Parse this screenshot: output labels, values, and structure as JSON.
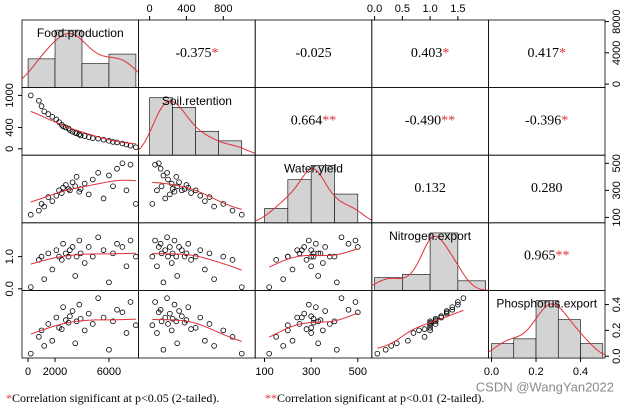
{
  "chart_data": {
    "type": "pairs",
    "variables": [
      {
        "name": "Food.production",
        "lim": [
          -450,
          8200
        ],
        "xticks": [
          0,
          2000,
          6000
        ],
        "yticks": [
          0,
          4000,
          8000
        ],
        "bins": [
          0,
          2000,
          4000,
          6000,
          8000
        ],
        "counts": [
          6,
          12,
          5,
          7
        ],
        "observations": [
          200,
          800,
          1000,
          1200,
          1500,
          1800,
          2100,
          2300,
          2500,
          2600,
          2800,
          3000,
          3100,
          3300,
          3500,
          3600,
          3800,
          3900,
          4200,
          4500,
          4800,
          5200,
          5600,
          6000,
          6300,
          6600,
          7000,
          7300,
          7600,
          8000
        ]
      },
      {
        "name": "Soil.retention",
        "lim": [
          -119,
          1146
        ],
        "xticks": [
          0,
          400,
          800
        ],
        "yticks": [
          0,
          400,
          1000
        ],
        "bins": [
          0,
          250,
          500,
          750,
          1000
        ],
        "counts": [
          12,
          10,
          5,
          3
        ],
        "observations": [
          1000,
          900,
          800,
          700,
          650,
          600,
          550,
          500,
          450,
          420,
          400,
          380,
          350,
          320,
          300,
          290,
          270,
          250,
          240,
          220,
          200,
          190,
          170,
          150,
          130,
          120,
          100,
          80,
          60,
          30
        ]
      },
      {
        "name": "Water.yield",
        "lim": [
          60,
          560
        ],
        "xticks": [
          100,
          300,
          500
        ],
        "yticks": [
          100,
          300,
          500
        ],
        "bins": [
          100,
          200,
          300,
          400,
          500
        ],
        "counts": [
          3,
          9,
          12,
          6
        ],
        "observations": [
          120,
          150,
          200,
          180,
          250,
          220,
          260,
          300,
          280,
          320,
          340,
          310,
          300,
          360,
          330,
          400,
          290,
          310,
          350,
          270,
          380,
          430,
          240,
          410,
          330,
          460,
          500,
          300,
          490,
          200
        ]
      },
      {
        "name": "Nitrogen.export",
        "lim": [
          -0.05,
          2.05
        ],
        "xticks": [
          {
            "value": 0,
            "label": "0.0"
          },
          {
            "value": 0.5,
            "label": "0.5"
          },
          {
            "value": 1,
            "label": "1.0"
          },
          {
            "value": 1.5,
            "label": "1.5"
          }
        ],
        "yticks": [
          {
            "value": 0,
            "label": "0.0"
          },
          {
            "value": 1,
            "label": "1.0"
          }
        ],
        "bins": [
          0,
          0.5,
          1,
          1.5,
          2
        ],
        "counts": [
          4,
          5,
          18,
          3
        ],
        "observations": [
          0.05,
          0.9,
          1.0,
          0.3,
          1.1,
          0.6,
          1.2,
          1.0,
          0.9,
          1.4,
          1.1,
          1.0,
          1.2,
          1.3,
          0.4,
          1.0,
          1.5,
          1.1,
          0.8,
          1.3,
          1.0,
          1.6,
          1.2,
          0.2,
          1.1,
          1.4,
          1.3,
          0.7,
          1.5,
          1.0
        ]
      },
      {
        "name": "Phosphorus.export",
        "lim": [
          -0.014,
          0.51
        ],
        "xticks": [
          {
            "value": 0,
            "label": "0.0"
          },
          0.2,
          0.4
        ],
        "yticks": [
          {
            "value": 0,
            "label": "0.0"
          },
          0.2,
          0.4
        ],
        "bins": [
          0,
          0.1,
          0.2,
          0.3,
          0.4,
          0.5
        ],
        "counts": [
          3,
          4,
          12,
          8,
          3
        ],
        "observations": [
          0.02,
          0.15,
          0.2,
          0.08,
          0.25,
          0.12,
          0.3,
          0.22,
          0.21,
          0.38,
          0.28,
          0.26,
          0.31,
          0.35,
          0.1,
          0.27,
          0.4,
          0.29,
          0.2,
          0.33,
          0.25,
          0.45,
          0.3,
          0.05,
          0.27,
          0.36,
          0.34,
          0.18,
          0.42,
          0.24
        ]
      }
    ],
    "correlations": [
      {
        "value": -0.375,
        "label": "-0.375",
        "stars": "*"
      },
      {
        "value": -0.025,
        "label": "-0.025"
      },
      {
        "value": 0.403,
        "label": "0.403",
        "stars": "*"
      },
      {
        "value": 0.417,
        "label": "0.417",
        "stars": "*"
      },
      {
        "value": 0.664,
        "label": "0.664",
        "stars": "**"
      },
      {
        "value": -0.49,
        "label": "-0.490",
        "stars": "**"
      },
      {
        "value": -0.396,
        "label": "-0.396",
        "stars": "*"
      },
      {
        "value": 0.132,
        "label": "0.132"
      },
      {
        "value": 0.28,
        "label": "0.280"
      },
      {
        "value": 0.965,
        "label": "0.965",
        "stars": "**"
      }
    ],
    "hist_color": "#d3d3d3",
    "line_color": "#e0303a",
    "star_color": "#e0303a",
    "footnotes": [
      {
        "marker": "*",
        "text": "Correlation significant at p<0.05 (2-tailed)."
      },
      {
        "marker": "**",
        "text": "Correlation significant at p<0.01 (2-tailed)."
      }
    ],
    "watermark": "CSDN @WangYan2022"
  }
}
